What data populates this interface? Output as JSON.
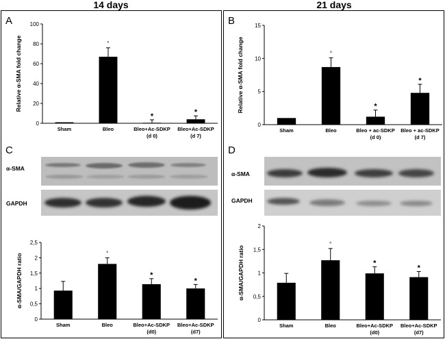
{
  "headers": {
    "left": "14 days",
    "right": "21 days"
  },
  "panels": {
    "A": "A",
    "B": "B",
    "C": "C",
    "D": "D"
  },
  "blots": {
    "C": {
      "top_label": "α-SMA",
      "bottom_label": "GAPDH"
    },
    "D": {
      "top_label": "α-SMA",
      "bottom_label": "GAPDH"
    }
  },
  "chart_data": [
    {
      "panel": "A",
      "type": "bar",
      "ylabel": "Relative α-SMA fold change",
      "xlabel": "",
      "ylim": [
        0,
        100
      ],
      "yticks": [
        0,
        20,
        40,
        60,
        80,
        100
      ],
      "ytick_labels": [
        "0",
        "20",
        "40",
        "60",
        "80",
        "100"
      ],
      "categories": [
        [
          "Sham"
        ],
        [
          "Bleo"
        ],
        [
          "Bleo+Ac-SDKP",
          "(d 0)"
        ],
        [
          "Bleo+Ac-SDKP",
          "(d 7)"
        ]
      ],
      "values": [
        1,
        67,
        0.5,
        4
      ],
      "errors": [
        0,
        9,
        3,
        3.5
      ],
      "markers": [
        "",
        "°",
        "*",
        "*"
      ],
      "marker_styles": [
        "",
        "small",
        "bold",
        "bold"
      ],
      "color": "#000000"
    },
    {
      "panel": "B",
      "type": "bar",
      "ylabel": "Relative α-SMA fold change",
      "xlabel": "",
      "ylim": [
        0,
        15
      ],
      "yticks": [
        0,
        5,
        10,
        15
      ],
      "ytick_labels": [
        "0",
        "5",
        "10",
        "15"
      ],
      "categories": [
        [
          "Sham"
        ],
        [
          "Bleo"
        ],
        [
          "Bleo + ac-SDKP",
          "(d 0)"
        ],
        [
          "Bleo + ac-SDKP",
          "(d 7)"
        ]
      ],
      "values": [
        1,
        8.7,
        1.2,
        4.8
      ],
      "errors": [
        0,
        1.4,
        1,
        1.3
      ],
      "markers": [
        "",
        "°",
        "*",
        "*"
      ],
      "marker_styles": [
        "",
        "small",
        "bold",
        "bold"
      ],
      "color": "#000000"
    },
    {
      "panel": "C",
      "type": "bar",
      "ylabel": "α-SMA/GAPDH ratio",
      "xlabel": "",
      "ylim": [
        0,
        2.5
      ],
      "yticks": [
        0,
        0.5,
        1,
        1.5,
        2,
        2.5
      ],
      "ytick_labels": [
        "0",
        "0,5",
        "1",
        "1,5",
        "2",
        "2,5"
      ],
      "categories": [
        [
          "Sham"
        ],
        [
          "Bleo"
        ],
        [
          "Bleo+Ac-SDKP",
          "(d0)"
        ],
        [
          "Bleo+Ac-SDKP",
          "(d7)"
        ]
      ],
      "values": [
        0.93,
        1.8,
        1.14,
        1.0
      ],
      "errors": [
        0.3,
        0.2,
        0.18,
        0.13
      ],
      "markers": [
        "",
        "°",
        "*",
        "*"
      ],
      "marker_styles": [
        "",
        "small",
        "bold",
        "bold"
      ],
      "color": "#000000"
    },
    {
      "panel": "D",
      "type": "bar",
      "ylabel": "α-SMA/GAPDH ratio",
      "xlabel": "",
      "ylim": [
        0,
        2
      ],
      "yticks": [
        0,
        0.5,
        1,
        1.5,
        2
      ],
      "ytick_labels": [
        "0",
        "0,5",
        "1",
        "1,5",
        "2"
      ],
      "categories": [
        [
          "Sham"
        ],
        [
          "Bleo"
        ],
        [
          "Bleo+Ac-SDKP",
          "(d0)"
        ],
        [
          "Bleo+Ac-SDKP",
          "(d7)"
        ]
      ],
      "values": [
        0.79,
        1.27,
        0.99,
        0.91
      ],
      "errors": [
        0.2,
        0.25,
        0.14,
        0.12
      ],
      "markers": [
        "",
        "°",
        "*",
        "*"
      ],
      "marker_styles": [
        "",
        "small",
        "bold",
        "bold"
      ],
      "color": "#000000"
    }
  ]
}
